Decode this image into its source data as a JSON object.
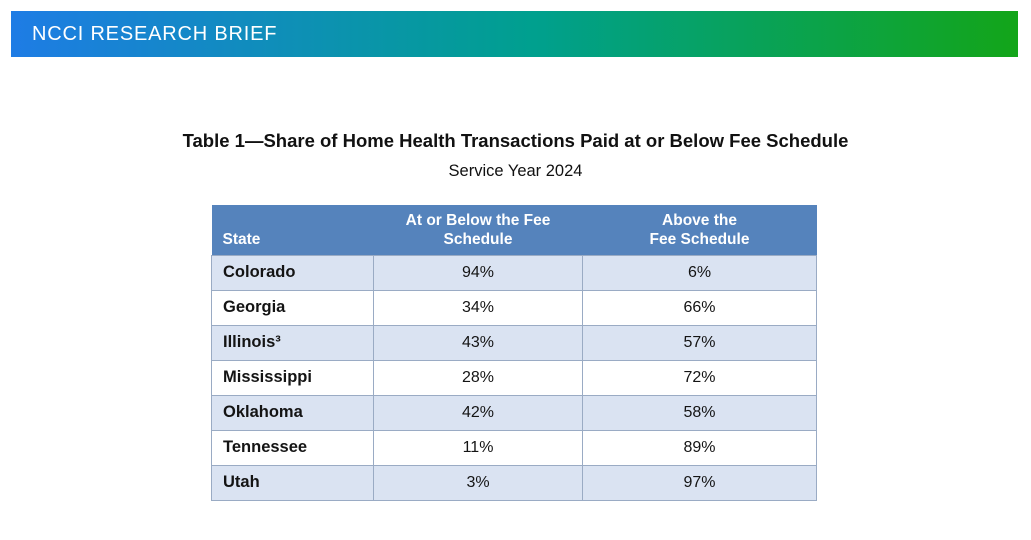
{
  "banner": {
    "title": "NCCI RESEARCH BRIEF",
    "gradient_colors": {
      "left": "#1E7CE5",
      "middle": "#00A08E",
      "right": "#13A519"
    }
  },
  "doc": {
    "title": "Table 1—Share of Home Health Transactions Paid at or Below Fee Schedule",
    "subtitle": "Service Year 2024"
  },
  "table": {
    "columns": [
      {
        "label": "State"
      },
      {
        "label": "At or Below the Fee\nSchedule"
      },
      {
        "label": "Above the\nFee Schedule"
      }
    ],
    "rows": [
      {
        "state": "Colorado",
        "at_or_below": "94%",
        "above": "6%"
      },
      {
        "state": "Georgia",
        "at_or_below": "34%",
        "above": "66%"
      },
      {
        "state": "Illinois³",
        "at_or_below": "43%",
        "above": "57%"
      },
      {
        "state": "Mississippi",
        "at_or_below": "28%",
        "above": "72%"
      },
      {
        "state": "Oklahoma",
        "at_or_below": "42%",
        "above": "58%"
      },
      {
        "state": "Tennessee",
        "at_or_below": "11%",
        "above": "89%"
      },
      {
        "state": "Utah",
        "at_or_below": "3%",
        "above": "97%"
      }
    ],
    "colors": {
      "header_bg": "#5583BC",
      "alt_row_bg": "#DAE3F2",
      "border": "#9AABC4"
    }
  },
  "chart_data": {
    "type": "table",
    "title": "Table 1—Share of Home Health Transactions Paid at or Below Fee Schedule",
    "subtitle": "Service Year 2024",
    "categories": [
      "Colorado",
      "Georgia",
      "Illinois",
      "Mississippi",
      "Oklahoma",
      "Tennessee",
      "Utah"
    ],
    "series": [
      {
        "name": "At or Below the Fee Schedule",
        "values": [
          94,
          34,
          43,
          28,
          42,
          11,
          3
        ]
      },
      {
        "name": "Above the Fee Schedule",
        "values": [
          6,
          66,
          57,
          72,
          58,
          89,
          97
        ]
      }
    ],
    "unit": "%"
  }
}
